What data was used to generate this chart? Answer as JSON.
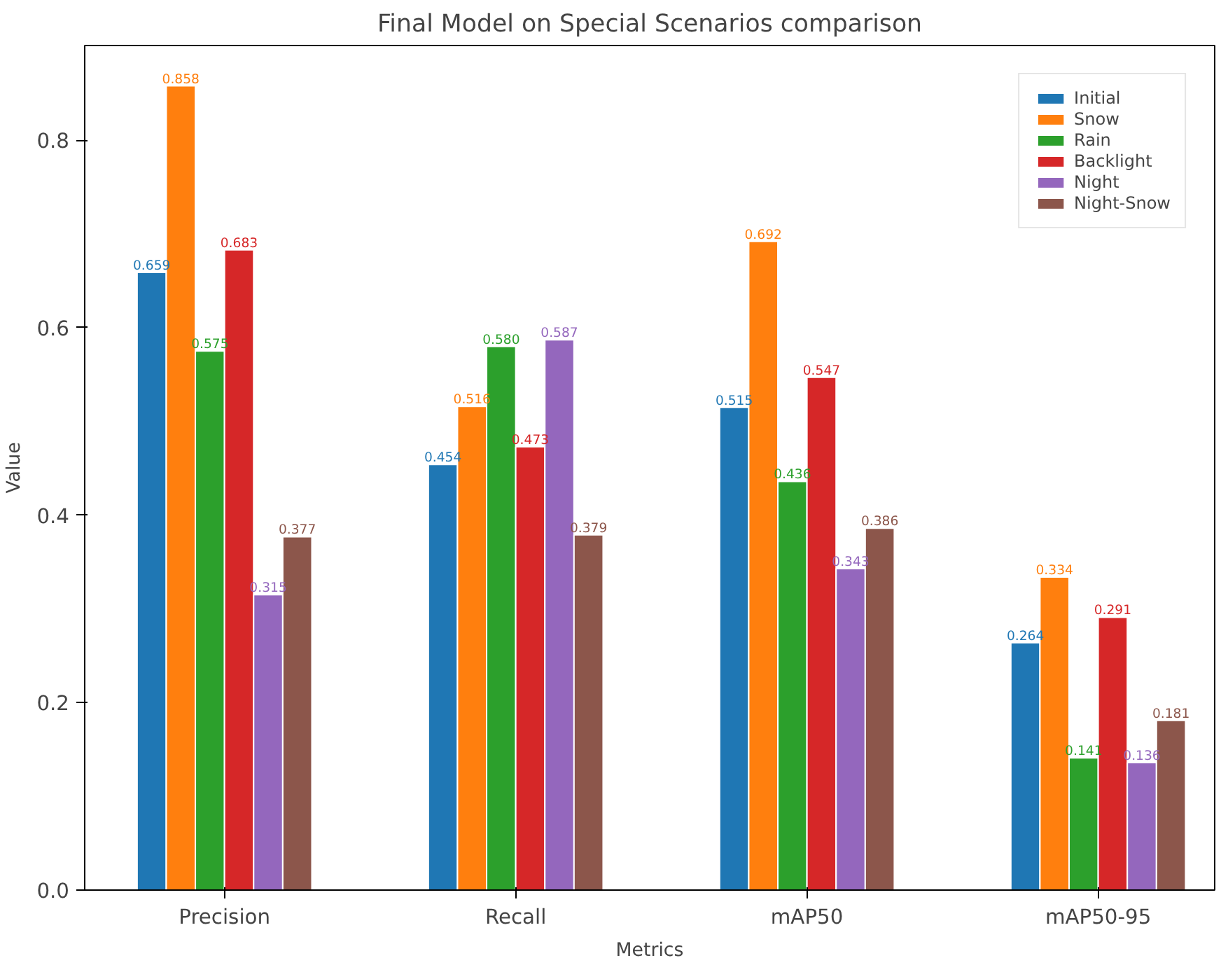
{
  "chart_data": {
    "type": "bar",
    "title": "Final Model on Special Scenarios comparison",
    "xlabel": "Metrics",
    "ylabel": "Value",
    "categories": [
      "Precision",
      "Recall",
      "mAP50",
      "mAP50-95"
    ],
    "series": [
      {
        "name": "Initial",
        "color": "#1f77b4",
        "values": [
          0.659,
          0.454,
          0.515,
          0.264
        ]
      },
      {
        "name": "Snow",
        "color": "#ff7f0e",
        "values": [
          0.858,
          0.516,
          0.692,
          0.334
        ]
      },
      {
        "name": "Rain",
        "color": "#2ca02c",
        "values": [
          0.575,
          0.58,
          0.436,
          0.141
        ],
        "value_labels": [
          "0.575",
          "0.580",
          "0.436",
          "0.141"
        ]
      },
      {
        "name": "Backlight",
        "color": "#d62728",
        "values": [
          0.683,
          0.473,
          0.547,
          0.291
        ]
      },
      {
        "name": "Night",
        "color": "#9467bd",
        "values": [
          0.315,
          0.587,
          0.343,
          0.136
        ]
      },
      {
        "name": "Night-Snow",
        "color": "#8c564b",
        "values": [
          0.377,
          0.379,
          0.386,
          0.181
        ]
      }
    ],
    "ylim": [
      0,
      0.901
    ],
    "yticks": [
      {
        "value": 0,
        "label": "0.0"
      },
      {
        "value": 0.2,
        "label": "0.2"
      },
      {
        "value": 0.4,
        "label": "0.4"
      },
      {
        "value": 0.6,
        "label": "0.6"
      },
      {
        "value": 0.8,
        "label": "0.8"
      }
    ],
    "data_labels": true,
    "legend": "top right",
    "grid": false
  }
}
